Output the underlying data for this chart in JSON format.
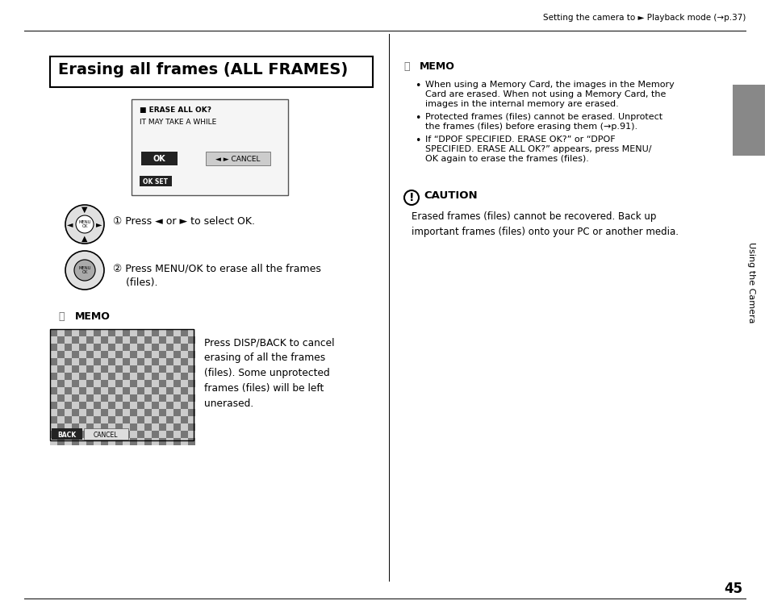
{
  "bg_color": "#ffffff",
  "page_number": "45",
  "header_text": "Setting the camera to ► Playback mode (→p.37)",
  "title": "Erasing all frames (ALL FRAMES)",
  "sidebar_text": "Using the Camera",
  "sidebar_rect_color": "#888888",
  "step1_text": "① Press ◄ or ► to select OK.",
  "step2_text": "② Press MENU/OK to erase all the frames\n    (files).",
  "memo_label": "MEMO",
  "memo_cancel_text": "Press DISP/BACK to cancel\nerasing of all the frames\n(files). Some unprotected\nframes (files) will be left\nunerased.",
  "right_memo_label": "MEMO",
  "right_memo_bullets": [
    "When using a Memory Card, the images in the Memory\nCard are erased. When not using a Memory Card, the\nimages in the internal memory are erased.",
    "Protected frames (files) cannot be erased. Unprotect\nthe frames (files) before erasing them (→p.91).",
    "If “DPOF SPECIFIED. ERASE OK?” or “DPOF\nSPECIFIED. ERASE ALL OK?” appears, press MENU/\nOK again to erase the frames (files)."
  ],
  "caution_label": "CAUTION",
  "caution_text": "Erased frames (files) cannot be recovered. Back up\nimportant frames (files) onto your PC or another media.",
  "screen_text_line1": "■ ERASE ALL OK?",
  "screen_text_line2": "IT MAY TAKE A WHILE",
  "screen_ok": "OK",
  "screen_cancel": "◄ ► CANCEL",
  "screen_ok_set": "OK SET"
}
